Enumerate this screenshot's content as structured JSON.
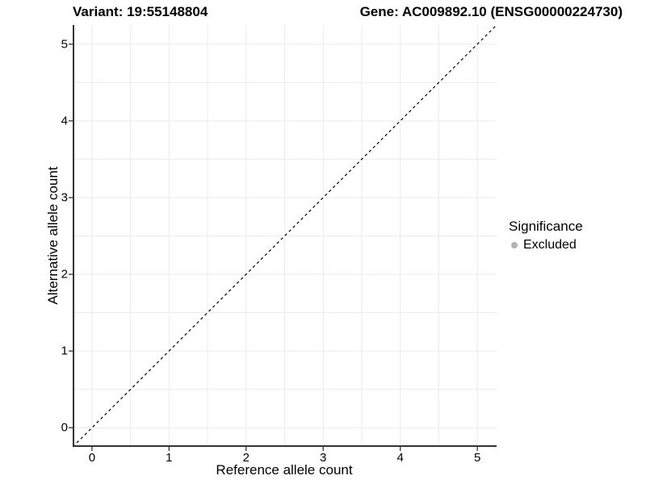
{
  "chart_data": {
    "type": "scatter",
    "title_left": "Variant: 19:55148804",
    "title_right": "Gene: AC009892.10 (ENSG00000224730)",
    "xlabel": "Reference allele count",
    "ylabel": "Alternative allele count",
    "xlim": [
      -0.25,
      5.25
    ],
    "ylim": [
      -0.25,
      5.25
    ],
    "x_ticks": [
      0,
      1,
      2,
      3,
      4,
      5
    ],
    "y_ticks": [
      0,
      1,
      2,
      3,
      4,
      5
    ],
    "minor_step": 0.5,
    "grid": true,
    "points": [],
    "reference_line": {
      "type": "identity",
      "style": "dashed",
      "color": "#000000"
    },
    "legend": {
      "position": "right",
      "title": "Significance",
      "items": [
        {
          "label": "Excluded",
          "marker": "circle",
          "color": "#b3b3b3"
        }
      ]
    }
  },
  "colors": {
    "background": "#ffffff",
    "grid": "#ebebeb",
    "axis_line": "#333333",
    "tick": "#333333",
    "text": "#000000"
  }
}
